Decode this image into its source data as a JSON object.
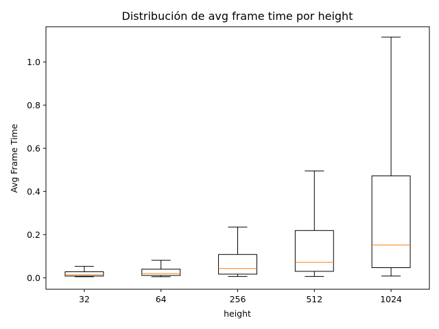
{
  "chart_data": {
    "type": "box",
    "title": "Distribución de avg frame time por height",
    "xlabel": "height",
    "ylabel": "Avg Frame Time",
    "categories": [
      "32",
      "64",
      "256",
      "512",
      "1024"
    ],
    "y_ticks": [
      0.0,
      0.2,
      0.4,
      0.6,
      0.8,
      1.0
    ],
    "y_tick_labels": [
      "0.0",
      "0.2",
      "0.4",
      "0.6",
      "0.8",
      "1.0"
    ],
    "ylim": [
      -0.053,
      1.163
    ],
    "grid": false,
    "series": [
      {
        "boxes": [
          {
            "category": "32",
            "whisker_low": 0.005,
            "q1": 0.008,
            "median": 0.014,
            "q3": 0.028,
            "whisker_high": 0.053
          },
          {
            "category": "64",
            "whisker_low": 0.005,
            "q1": 0.011,
            "median": 0.02,
            "q3": 0.04,
            "whisker_high": 0.081
          },
          {
            "category": "256",
            "whisker_low": 0.006,
            "q1": 0.017,
            "median": 0.043,
            "q3": 0.108,
            "whisker_high": 0.235
          },
          {
            "category": "512",
            "whisker_low": 0.006,
            "q1": 0.03,
            "median": 0.072,
            "q3": 0.219,
            "whisker_high": 0.495
          },
          {
            "category": "1024",
            "whisker_low": 0.008,
            "q1": 0.047,
            "median": 0.152,
            "q3": 0.472,
            "whisker_high": 1.115
          }
        ]
      }
    ],
    "colors": {
      "box": "#000000",
      "median": "#ff7f0e"
    }
  }
}
